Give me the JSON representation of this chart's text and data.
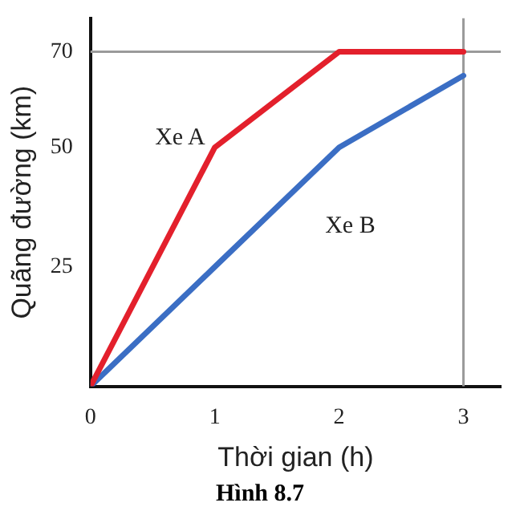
{
  "chart_data": {
    "type": "line",
    "xlabel": "Thời gian (h)",
    "ylabel": "Quãng đường (km)",
    "annotations": [
      "Hình 8.7"
    ],
    "x": [
      0,
      1,
      2,
      3
    ],
    "series": [
      {
        "name": "Xe A",
        "color": "#e3202c",
        "values": [
          0,
          50,
          70,
          70
        ]
      },
      {
        "name": "Xe B",
        "color": "#3b6ec4",
        "values": [
          0,
          25,
          50,
          65
        ]
      }
    ],
    "xlim": [
      0,
      3.3
    ],
    "xticks": [
      0,
      1,
      2,
      3
    ],
    "ylim": [
      0,
      77
    ],
    "yticks": [
      25,
      50,
      70
    ],
    "ref_lines": [
      {
        "axis": "y",
        "value": 70,
        "color": "#9a9a9a"
      },
      {
        "axis": "x",
        "value": 3,
        "color": "#9a9a9a"
      }
    ],
    "grid": false,
    "legend": false,
    "marker": "none",
    "line_style": "solid"
  }
}
